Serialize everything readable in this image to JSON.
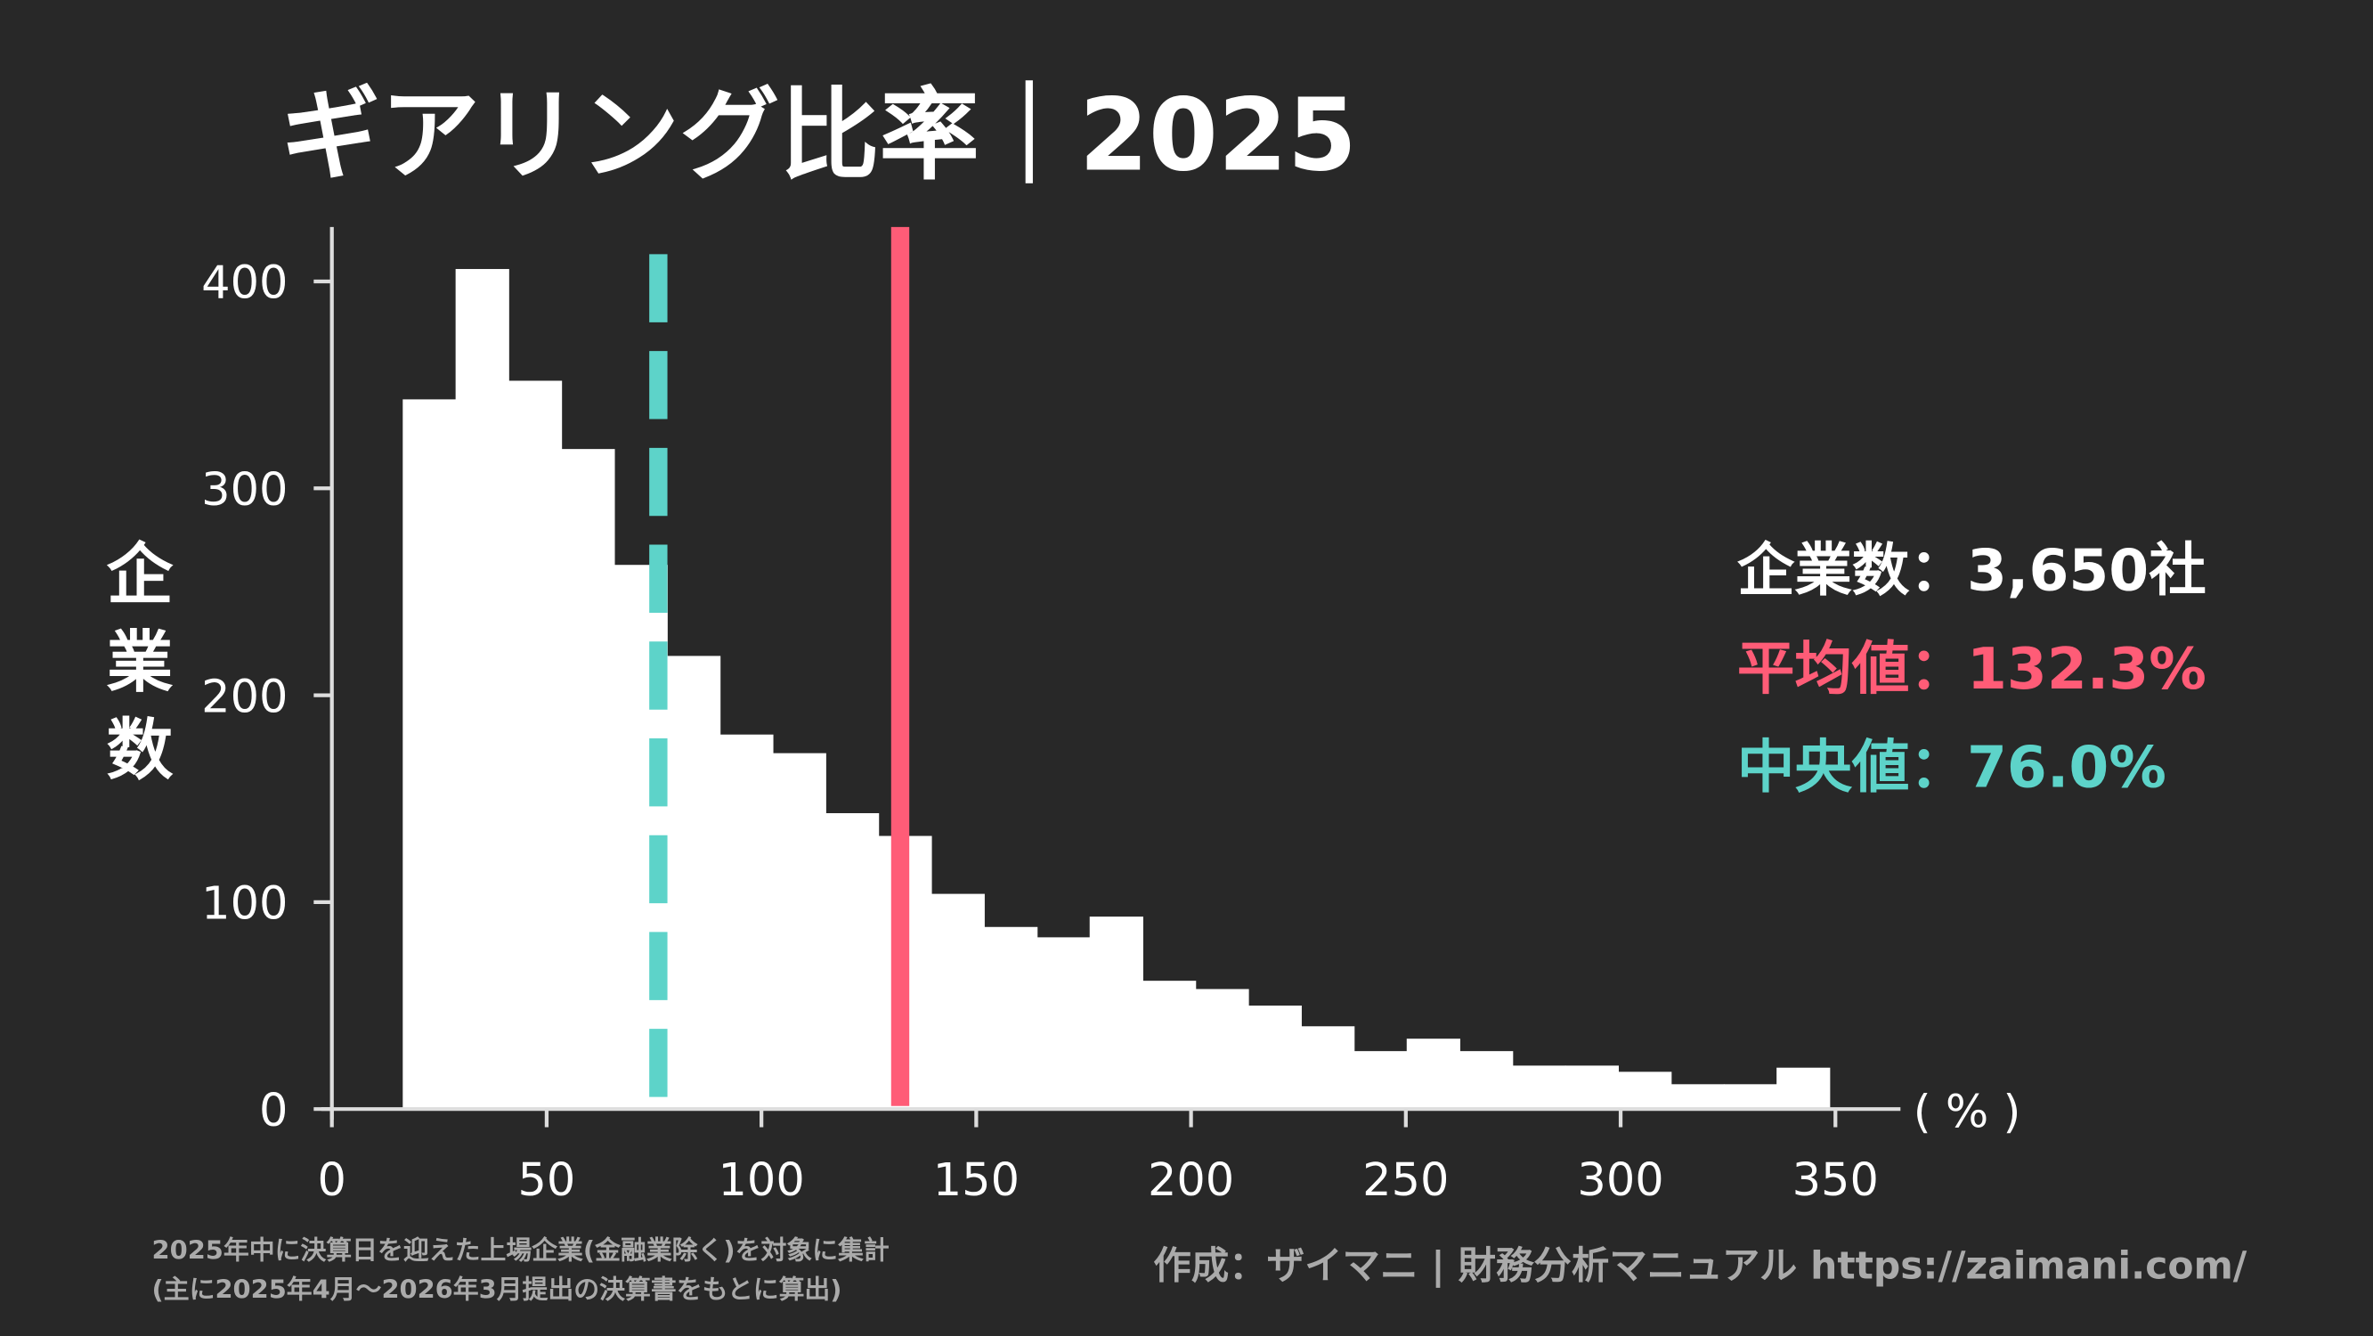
{
  "title": "ギアリング比率｜2025",
  "colors": {
    "background": "#282828",
    "bars": "#ffffff",
    "mean": "#ff5c77",
    "median": "#5dd3c9",
    "note": "#aaaaaa"
  },
  "stats": {
    "count_label": "企業数：3,650社",
    "mean_label": "平均値：132.3%",
    "median_label": "中央値：76.0%"
  },
  "footer": {
    "note_line1": "2025年中に決算日を迎えた上場企業(金融業除く)を対象に集計",
    "note_line2": "(主に2025年4月〜2026年3月提出の決算書をもとに算出)",
    "credit": "作成：ザイマニ | 財務分析マニュアル https://zaimani.com/"
  },
  "chart_data": {
    "type": "bar",
    "title": "ギアリング比率｜2025",
    "xlabel": "( % )",
    "ylabel": "企業数",
    "xlim": [
      0,
      365
    ],
    "ylim": [
      0,
      425
    ],
    "grid": false,
    "x_ticks": [
      "0",
      "50",
      "100",
      "150",
      "200",
      "250",
      "300",
      "350"
    ],
    "y_ticks": [
      "0",
      "100",
      "200",
      "300",
      "400"
    ],
    "bin_start": 16.5,
    "bin_width": 12.3,
    "values": [
      343,
      406,
      352,
      319,
      263,
      219,
      181,
      172,
      143,
      132,
      104,
      88,
      83,
      93,
      62,
      58,
      50,
      40,
      28,
      34,
      28,
      21,
      21,
      18,
      12,
      12,
      20
    ],
    "mean": 132.3,
    "median": 76.0
  }
}
